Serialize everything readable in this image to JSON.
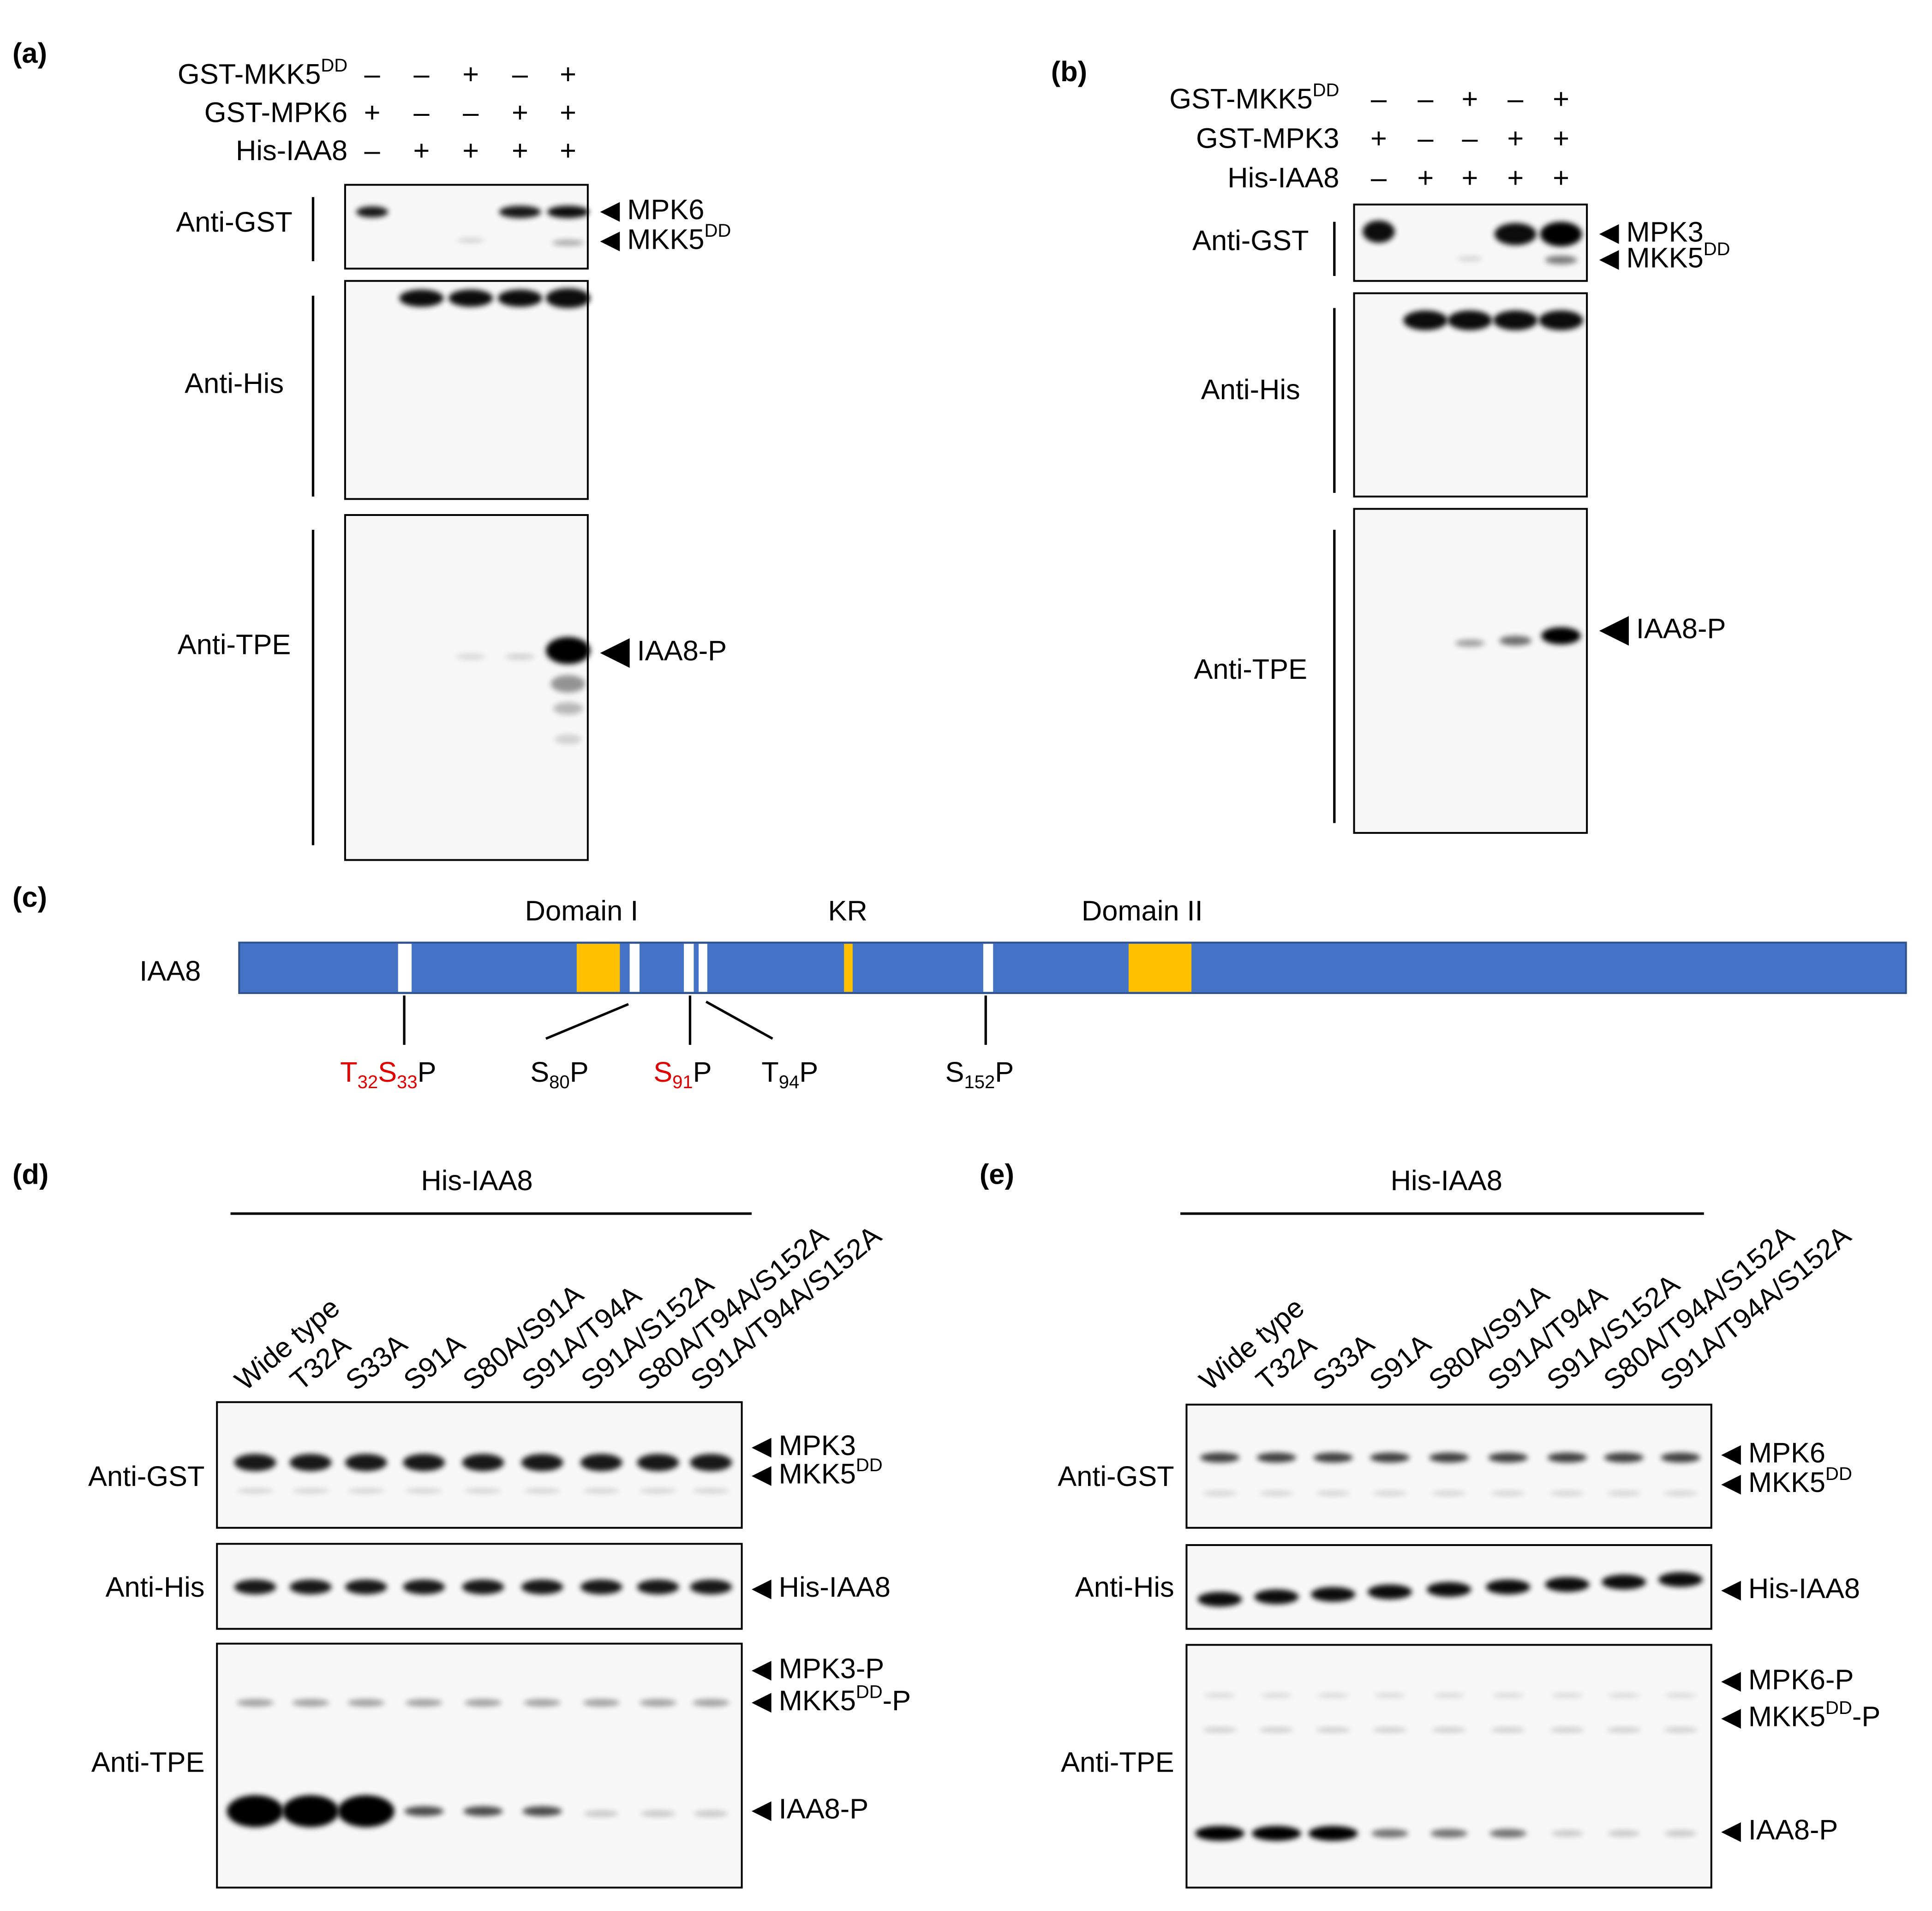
{
  "panel_a": {
    "label": "(a)",
    "conditions": [
      {
        "name": "GST-MKK5",
        "sup": "DD",
        "signs": [
          "–",
          "–",
          "+",
          "–",
          "+"
        ]
      },
      {
        "name": "GST-MPK6",
        "signs": [
          "+",
          "–",
          "–",
          "+",
          "+"
        ]
      },
      {
        "name": "His-IAA8",
        "signs": [
          "–",
          "+",
          "+",
          "+",
          "+"
        ]
      }
    ],
    "antibodies": [
      "Anti-GST",
      "Anti-His",
      "Anti-TPE"
    ],
    "markers": [
      {
        "text": "MPK6"
      },
      {
        "text": "MKK5",
        "sup": "DD"
      },
      {
        "text": "IAA8-P"
      }
    ]
  },
  "panel_b": {
    "label": "(b)",
    "conditions": [
      {
        "name": "GST-MKK5",
        "sup": "DD",
        "signs": [
          "–",
          "–",
          "+",
          "–",
          "+"
        ]
      },
      {
        "name": "GST-MPK3",
        "signs": [
          "+",
          "–",
          "–",
          "+",
          "+"
        ]
      },
      {
        "name": "His-IAA8",
        "signs": [
          "–",
          "+",
          "+",
          "+",
          "+"
        ]
      }
    ],
    "antibodies": [
      "Anti-GST",
      "Anti-His",
      "Anti-TPE"
    ],
    "markers": [
      {
        "text": "MPK3"
      },
      {
        "text": "MKK5",
        "sup": "DD"
      },
      {
        "text": "IAA8-P"
      }
    ]
  },
  "panel_c": {
    "label": "(c)",
    "protein": "IAA8",
    "domains": [
      "Domain I",
      "KR",
      "Domain II"
    ],
    "sites": [
      {
        "parts": [
          {
            "text": "T",
            "sub": "32",
            "color": "#e00000"
          },
          {
            "text": "S",
            "sub": "33",
            "color": "#e00000"
          },
          {
            "text": "P"
          }
        ]
      },
      {
        "parts": [
          {
            "text": "S",
            "sub": "80"
          },
          {
            "text": "P"
          }
        ]
      },
      {
        "parts": [
          {
            "text": "S",
            "sub": "91",
            "color": "#e00000"
          },
          {
            "text": "P"
          }
        ]
      },
      {
        "parts": [
          {
            "text": "T",
            "sub": "94"
          },
          {
            "text": "P"
          }
        ]
      },
      {
        "parts": [
          {
            "text": "S",
            "sub": "152"
          },
          {
            "text": "P"
          }
        ]
      }
    ]
  },
  "panel_d": {
    "label": "(d)",
    "header": "His-IAA8",
    "lanes": [
      "Wide type",
      "T32A",
      "S33A",
      "S91A",
      "S80A/S91A",
      "S91A/T94A",
      "S91A/S152A",
      "S80A/T94A/S152A",
      "S91A/T94A/S152A"
    ],
    "antibodies": [
      "Anti-GST",
      "Anti-His",
      "Anti-TPE"
    ],
    "markers": [
      {
        "text": "MPK3"
      },
      {
        "text": "MKK5",
        "sup": "DD"
      },
      {
        "text": "His-IAA8"
      },
      {
        "text": "MPK3-P"
      },
      {
        "text": "MKK5",
        "sup": "DD",
        "after": "-P"
      },
      {
        "text": "IAA8-P"
      }
    ]
  },
  "panel_e": {
    "label": "(e)",
    "header": "His-IAA8",
    "lanes": [
      "Wide type",
      "T32A",
      "S33A",
      "S91A",
      "S80A/S91A",
      "S91A/T94A",
      "S91A/S152A",
      "S80A/T94A/S152A",
      "S91A/T94A/S152A"
    ],
    "antibodies": [
      "Anti-GST",
      "Anti-His",
      "Anti-TPE"
    ],
    "markers": [
      {
        "text": "MPK6"
      },
      {
        "text": "MKK5",
        "sup": "DD"
      },
      {
        "text": "His-IAA8"
      },
      {
        "text": "MPK6-P"
      },
      {
        "text": "MKK5",
        "sup": "DD",
        "after": "-P"
      },
      {
        "text": "IAA8-P"
      }
    ]
  }
}
